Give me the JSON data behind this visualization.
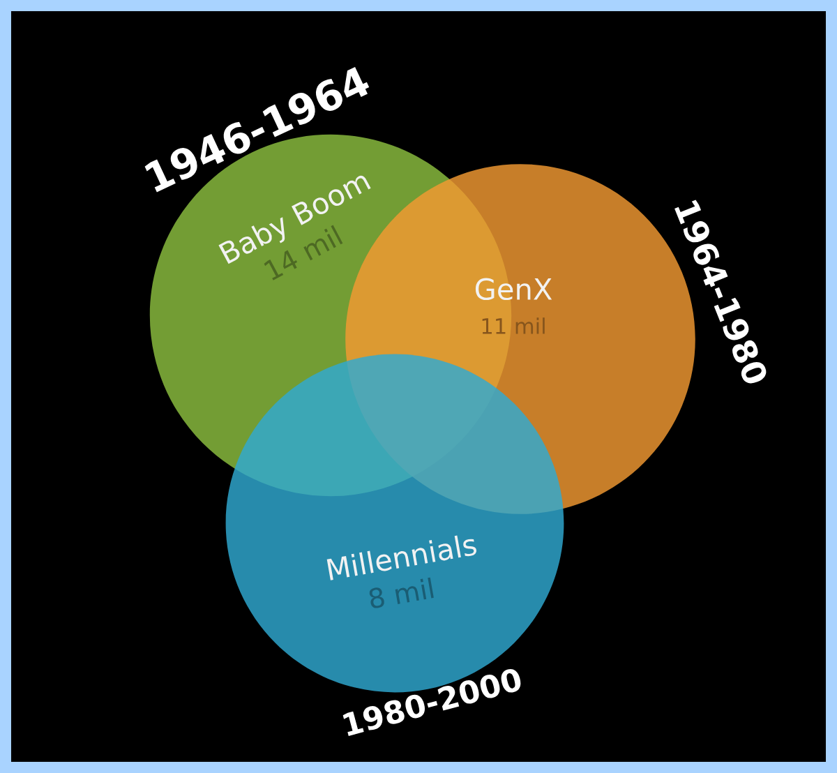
{
  "chart_data": {
    "type": "other",
    "categories": [
      "Baby Boom",
      "GenX",
      "Millennials"
    ],
    "values": [
      14,
      11,
      8
    ],
    "value_labels": [
      "14 mil",
      "11 mil",
      "8 mil"
    ],
    "colors": [
      "#8cbf3f",
      "#f39a32",
      "#2fa9d2"
    ],
    "annotations": [
      "1946-1964",
      "1964-1980",
      "1980-2000"
    ]
  }
}
